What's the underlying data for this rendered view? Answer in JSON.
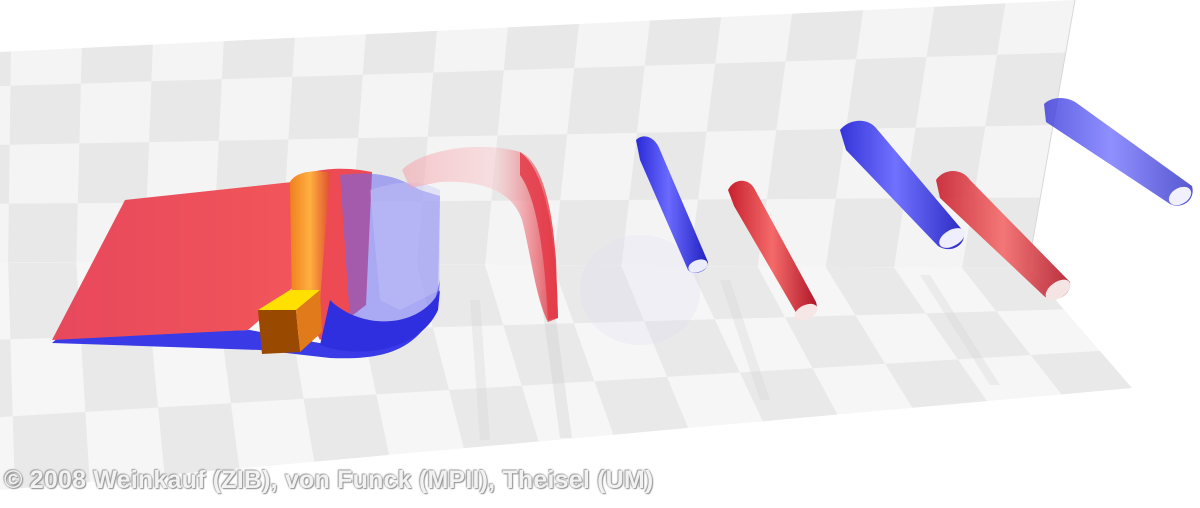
{
  "image": {
    "type": "3d-flow-visualization-render",
    "colors": {
      "background": "#ffffff",
      "checker_light": "#f4f4f4",
      "checker_dark": "#dedede",
      "surface_red": "#ef4a52",
      "surface_blue": "#3a3ae6",
      "obstacle_top": "#ffe000",
      "obstacle_front": "#9a4a00",
      "obstacle_side": "#e07a1a"
    },
    "objects": [
      "background-checkerboard-wall",
      "floor-checkerboard-plane",
      "red-blue-separation-surface",
      "square-cylinder-obstacle",
      "transparent-vortex-arch",
      "blue-vortex-tube-1",
      "red-vortex-tube-1",
      "blue-vortex-tube-2",
      "red-vortex-tube-2",
      "blue-vortex-tube-3"
    ]
  },
  "credit": "© 2008 Weinkauf (ZIB), von Funck (MPII), Theisel (UM)"
}
